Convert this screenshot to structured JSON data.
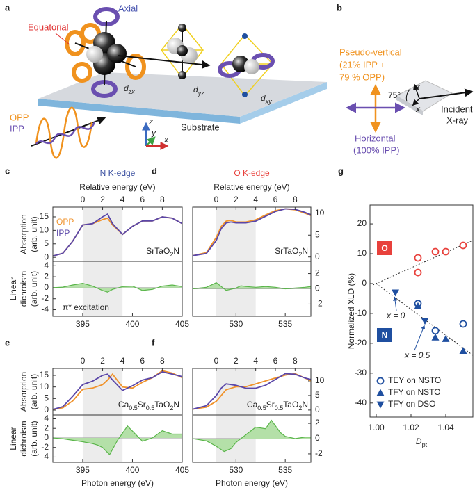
{
  "figure": {
    "a": {
      "label": "a",
      "axial": "Axial",
      "equatorial": "Equatorial",
      "orbitals": [
        {
          "d": "d",
          "sub": "zx"
        },
        {
          "d": "d",
          "sub": "yz"
        },
        {
          "d": "d",
          "sub": "xy"
        }
      ],
      "substrate": "Substrate",
      "opp": "OPP",
      "ipp": "IPP",
      "axes": [
        "z",
        "y",
        "x"
      ]
    },
    "b": {
      "label": "b",
      "vertical": [
        "Pseudo-vertical",
        "(21% IPP +",
        "79 % OPP)"
      ],
      "angle": "75°",
      "axes": [
        "z",
        "x"
      ],
      "incident": [
        "Incident",
        "X-ray"
      ],
      "horizontal": [
        "Horizontal",
        "(100% IPP)"
      ]
    }
  },
  "chart_data": [
    {
      "type": "line",
      "panel": "c",
      "title": "N K-edge",
      "title_color": "#3a4fa0",
      "x2label": "Relative energy (eV)",
      "x2lim": [
        -3,
        10
      ],
      "x2ticks": [
        0,
        2,
        4,
        6,
        8
      ],
      "xlim": [
        392,
        405
      ],
      "ylim": [
        -1.5,
        18.6
      ],
      "yticks": [
        0,
        5,
        10,
        15
      ],
      "yaxis": "left",
      "ylabel": [
        "Absorption",
        "(arb. unit)"
      ],
      "highlight": [
        395,
        399
      ],
      "sample": [
        "SrTaO",
        "2",
        "N"
      ],
      "legend": true,
      "series": [
        {
          "name": "OPP",
          "color": "#f0922a",
          "x": [
            392,
            393,
            394,
            395,
            396,
            397,
            397.5,
            398,
            399,
            400,
            401,
            402,
            403,
            404,
            405
          ],
          "values": [
            0.5,
            1.5,
            6,
            12,
            12.5,
            14,
            14.5,
            12,
            8.5,
            11.5,
            13.5,
            13.5,
            15,
            14.5,
            12.5
          ]
        },
        {
          "name": "IPP",
          "color": "#5a46a8",
          "x": [
            392,
            393,
            394,
            395,
            396,
            397,
            397.5,
            398,
            399,
            400,
            401,
            402,
            403,
            404,
            405
          ],
          "values": [
            0.5,
            1.5,
            6,
            12,
            12.5,
            15,
            16,
            12.5,
            8.5,
            11.5,
            13.5,
            13.5,
            15,
            14.5,
            12.5
          ]
        }
      ]
    },
    {
      "type": "area",
      "xlim": [
        392,
        405
      ],
      "ylim": [
        -5.2,
        4.8
      ],
      "yticks": [
        -4,
        -2,
        0,
        2,
        4
      ],
      "yaxis": "left",
      "ylabel": [
        "Linear",
        "dichroism",
        "(arb. unit)"
      ],
      "xticks": [
        395,
        400,
        405
      ],
      "highlight": [
        395,
        399
      ],
      "annotation": "π* excitation",
      "series": [
        {
          "color": "#5ab54a",
          "x": [
            392,
            393,
            394,
            395,
            396,
            397,
            397.5,
            398,
            399,
            400,
            401,
            402,
            403,
            404,
            405
          ],
          "values": [
            0,
            0.1,
            0.5,
            0.8,
            0.3,
            -0.5,
            -0.8,
            -0.3,
            0.2,
            0.3,
            -0.5,
            -0.3,
            0.3,
            0.5,
            0.2
          ]
        }
      ]
    },
    {
      "type": "line",
      "panel": "d",
      "title": "O K-edge",
      "title_color": "#e8413c",
      "x2label": "Relative energy (eV)",
      "x2lim": [
        -2.4,
        9.6
      ],
      "x2ticks": [
        0,
        2,
        4,
        6,
        8
      ],
      "xlim": [
        525.6,
        537.6
      ],
      "ylim": [
        -1,
        11.4
      ],
      "yticks": [
        0,
        5,
        10
      ],
      "yaxis": "right",
      "highlight": [
        528,
        532
      ],
      "sample": [
        "SrTaO",
        "2",
        "N"
      ],
      "series": [
        {
          "name": "OPP",
          "color": "#f0922a",
          "x": [
            525.6,
            527,
            528,
            528.5,
            529,
            529.5,
            530,
            531,
            532,
            533,
            534,
            535,
            536,
            537,
            537.6
          ],
          "values": [
            0.3,
            1,
            4.5,
            7,
            8.2,
            8.4,
            8,
            8,
            8.5,
            9.6,
            10.6,
            11,
            10.8,
            10,
            9.5
          ]
        },
        {
          "name": "IPP",
          "color": "#5a46a8",
          "x": [
            525.6,
            527,
            528,
            528.5,
            529,
            529.5,
            530,
            531,
            532,
            533,
            534,
            535,
            536,
            537,
            537.6
          ],
          "values": [
            0.3,
            0.8,
            3.8,
            6.5,
            7.8,
            8,
            7.8,
            7.8,
            8.2,
            9.3,
            10.4,
            11,
            10.9,
            10.2,
            9.6
          ]
        }
      ]
    },
    {
      "type": "area",
      "xlim": [
        525.6,
        537.6
      ],
      "ylim": [
        -3.6,
        3.6
      ],
      "yticks": [
        -2,
        0,
        2
      ],
      "yaxis": "right",
      "xticks": [
        530,
        535
      ],
      "highlight": [
        528,
        532
      ],
      "series": [
        {
          "color": "#5ab54a",
          "x": [
            525.6,
            527,
            528,
            528.5,
            529,
            530,
            530.5,
            531,
            532,
            533,
            534,
            535,
            536,
            537,
            537.6
          ],
          "values": [
            0,
            0.2,
            0.8,
            0.3,
            -0.2,
            0.1,
            0.4,
            0.3,
            0.2,
            0.3,
            0.2,
            0,
            0.1,
            0.2,
            0.3
          ]
        }
      ]
    },
    {
      "type": "line",
      "panel": "e",
      "x2lim": [
        -3,
        10
      ],
      "x2ticks": [
        0,
        2,
        4,
        6,
        8
      ],
      "xlim": [
        392,
        405
      ],
      "ylim": [
        -2.1,
        18
      ],
      "yticks": [
        0,
        5,
        10,
        15
      ],
      "yaxis": "left",
      "ylabel": [
        "Absorption",
        "(arb. unit)"
      ],
      "highlight": [
        395,
        399
      ],
      "sample": [
        "Ca",
        "0.5",
        "Sr",
        "0.5",
        "TaO",
        "2",
        "N"
      ],
      "series": [
        {
          "name": "OPP",
          "color": "#f0922a",
          "x": [
            392,
            393,
            394,
            395,
            396,
            397,
            397.5,
            398,
            399,
            400,
            401,
            402,
            403,
            404,
            405
          ],
          "values": [
            0.3,
            1,
            4,
            9,
            9.5,
            11,
            13,
            15.5,
            10,
            9.5,
            12,
            14,
            17,
            16,
            14
          ]
        },
        {
          "name": "IPP",
          "color": "#5a46a8",
          "x": [
            392,
            393,
            394,
            395,
            396,
            397,
            397.5,
            398,
            399,
            400,
            401,
            402,
            403,
            404,
            405
          ],
          "values": [
            0.3,
            1.5,
            6,
            11,
            12.5,
            15,
            15.5,
            13,
            8.5,
            10.5,
            13,
            14,
            16.5,
            15.5,
            14.5
          ]
        }
      ]
    },
    {
      "type": "area",
      "xlim": [
        392,
        405
      ],
      "ylim": [
        -5.1,
        4.8
      ],
      "yticks": [
        -4,
        -2,
        0,
        2,
        4
      ],
      "yaxis": "left",
      "ylabel": [
        "Linear",
        "dichroism",
        "(arb. unit)"
      ],
      "xticks": [
        395,
        400,
        405
      ],
      "xlabel": "Photon energy (eV)",
      "highlight": [
        395,
        399
      ],
      "series": [
        {
          "color": "#5ab54a",
          "x": [
            392,
            393,
            394,
            395,
            396,
            396.5,
            397,
            397.7,
            398.5,
            399.5,
            401,
            402,
            403,
            404,
            405
          ],
          "values": [
            0,
            -0.2,
            -0.5,
            -0.8,
            -1.2,
            -1.5,
            -2,
            -3.5,
            -0.5,
            2.5,
            -0.7,
            0,
            1.5,
            0.8,
            0.8
          ]
        }
      ]
    },
    {
      "type": "line",
      "panel": "f",
      "x2lim": [
        -2.4,
        9.6
      ],
      "x2ticks": [
        0,
        2,
        4,
        6,
        8
      ],
      "xlim": [
        525.6,
        537.6
      ],
      "ylim": [
        -1.7,
        14.3
      ],
      "yticks": [
        0,
        5,
        10
      ],
      "yaxis": "right",
      "highlight": [
        528,
        532
      ],
      "sample": [
        "Ca",
        "0.5",
        "Sr",
        "0.5",
        "TaO",
        "2",
        "N"
      ],
      "series": [
        {
          "name": "OPP",
          "color": "#f0922a",
          "x": [
            525.6,
            527,
            528,
            528.5,
            529,
            530,
            531,
            532,
            533,
            534,
            535,
            536,
            537,
            537.6
          ],
          "values": [
            0.3,
            1,
            3,
            5,
            7,
            8,
            8,
            9,
            10,
            11,
            12,
            12.5,
            11,
            10
          ]
        },
        {
          "name": "IPP",
          "color": "#5a46a8",
          "x": [
            525.6,
            527,
            528,
            528.5,
            529,
            530,
            531,
            532,
            533,
            534,
            535,
            536,
            537,
            537.6
          ],
          "values": [
            0.3,
            1.5,
            5,
            7.5,
            9,
            8.5,
            7.5,
            7.5,
            8.5,
            10.5,
            12.5,
            12.3,
            11,
            10.5
          ]
        }
      ]
    },
    {
      "type": "area",
      "xlim": [
        525.6,
        537.6
      ],
      "ylim": [
        -3.1,
        3.1
      ],
      "yticks": [
        -2,
        0,
        2
      ],
      "yaxis": "right",
      "xticks": [
        530,
        535
      ],
      "xlabel": "Photon energy (eV)",
      "highlight": [
        528,
        532
      ],
      "series": [
        {
          "color": "#5ab54a",
          "x": [
            525.6,
            527,
            528,
            528.8,
            529.5,
            530,
            531,
            532,
            533,
            533.6,
            534.5,
            535,
            536,
            537,
            537.6
          ],
          "values": [
            0,
            -0.3,
            -1,
            -1.7,
            -1.3,
            -0.5,
            0.5,
            1.5,
            1.3,
            2.4,
            0.8,
            0.3,
            0,
            0.2,
            0.2
          ]
        }
      ]
    },
    {
      "type": "scatter",
      "panel": "g",
      "xlim": [
        0.9964,
        1.0556
      ],
      "xticks": [
        {
          "value": 1,
          "label": "1.00"
        },
        {
          "value": 1.02,
          "label": "1.02"
        },
        {
          "value": 1.04,
          "label": "1.04"
        }
      ],
      "ylim": [
        -44.7,
        26.3
      ],
      "yticks": [
        -40,
        -30,
        -20,
        -10,
        0,
        10,
        20
      ],
      "ylabel": "Normalized XLD (%)",
      "xlabel": {
        "main": "D",
        "sub": "pt"
      },
      "element_labels": [
        {
          "text": "O",
          "color": "#e8413c"
        },
        {
          "text": "N",
          "color": "#1f4fa0"
        }
      ],
      "annotations": [
        "x = 0",
        "x = 0.5"
      ],
      "fits": [
        {
          "x": [
            0.9964,
            1.0556
          ],
          "values": [
            -0.9,
            14.5
          ]
        },
        {
          "x": [
            1.0,
            1.0556
          ],
          "values": [
            0,
            -24
          ]
        }
      ],
      "series": [
        {
          "color": "#e8413c",
          "marker": "circle",
          "x": [
            1.024,
            1.024,
            1.034,
            1.04,
            1.05
          ],
          "values": [
            8.6,
            3.7,
            10.7,
            10.7,
            12.8
          ]
        },
        {
          "name": "TEY on NSTO",
          "color": "#1f4fa0",
          "marker": "circle",
          "x": [
            1.024,
            1.034,
            1.05
          ],
          "values": [
            -6.7,
            -15.8,
            -13.5
          ]
        },
        {
          "name": "TFY on NSTO",
          "color": "#1f4fa0",
          "marker": "triangle-up",
          "x": [
            1.024,
            1.034,
            1.04,
            1.05
          ],
          "values": [
            -7.5,
            -18,
            -18.5,
            -22.5
          ]
        },
        {
          "name": "TFY on DSO",
          "color": "#1f4fa0",
          "marker": "triangle-down",
          "x": [
            1.011,
            1.028
          ],
          "values": [
            -3,
            -12.5
          ]
        }
      ]
    }
  ]
}
